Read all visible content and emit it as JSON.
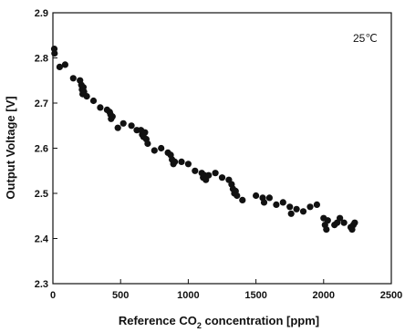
{
  "chart_data": {
    "type": "scatter",
    "annotation": "25℃",
    "ylabel": "Output Voltage [V]",
    "xlabel_parts": [
      "Reference CO",
      "2",
      " concentration [ppm]"
    ],
    "xlim": [
      0,
      2500
    ],
    "ylim": [
      2.3,
      2.9
    ],
    "xticks": [
      0,
      500,
      1000,
      1500,
      2000,
      2500
    ],
    "yticks": [
      2.3,
      2.4,
      2.5,
      2.6,
      2.7,
      2.8,
      2.9
    ],
    "grid": false,
    "marker_color": "#111111",
    "points": [
      [
        10,
        2.82
      ],
      [
        12,
        2.81
      ],
      [
        50,
        2.78
      ],
      [
        90,
        2.785
      ],
      [
        150,
        2.755
      ],
      [
        200,
        2.75
      ],
      [
        210,
        2.74
      ],
      [
        215,
        2.73
      ],
      [
        220,
        2.72
      ],
      [
        225,
        2.735
      ],
      [
        230,
        2.725
      ],
      [
        250,
        2.715
      ],
      [
        300,
        2.705
      ],
      [
        350,
        2.69
      ],
      [
        400,
        2.685
      ],
      [
        420,
        2.68
      ],
      [
        425,
        2.675
      ],
      [
        430,
        2.665
      ],
      [
        440,
        2.67
      ],
      [
        480,
        2.645
      ],
      [
        520,
        2.655
      ],
      [
        580,
        2.65
      ],
      [
        620,
        2.64
      ],
      [
        650,
        2.64
      ],
      [
        660,
        2.63
      ],
      [
        670,
        2.625
      ],
      [
        680,
        2.635
      ],
      [
        690,
        2.62
      ],
      [
        700,
        2.61
      ],
      [
        750,
        2.595
      ],
      [
        800,
        2.6
      ],
      [
        850,
        2.59
      ],
      [
        870,
        2.585
      ],
      [
        880,
        2.575
      ],
      [
        890,
        2.565
      ],
      [
        900,
        2.57
      ],
      [
        950,
        2.57
      ],
      [
        1000,
        2.565
      ],
      [
        1050,
        2.55
      ],
      [
        1100,
        2.545
      ],
      [
        1110,
        2.535
      ],
      [
        1120,
        2.54
      ],
      [
        1130,
        2.53
      ],
      [
        1150,
        2.54
      ],
      [
        1200,
        2.545
      ],
      [
        1250,
        2.535
      ],
      [
        1300,
        2.53
      ],
      [
        1320,
        2.52
      ],
      [
        1330,
        2.51
      ],
      [
        1340,
        2.5
      ],
      [
        1350,
        2.505
      ],
      [
        1360,
        2.495
      ],
      [
        1400,
        2.485
      ],
      [
        1500,
        2.495
      ],
      [
        1550,
        2.49
      ],
      [
        1560,
        2.48
      ],
      [
        1600,
        2.49
      ],
      [
        1650,
        2.475
      ],
      [
        1700,
        2.48
      ],
      [
        1750,
        2.47
      ],
      [
        1760,
        2.455
      ],
      [
        1800,
        2.465
      ],
      [
        1850,
        2.46
      ],
      [
        1900,
        2.47
      ],
      [
        1950,
        2.475
      ],
      [
        2000,
        2.445
      ],
      [
        2010,
        2.43
      ],
      [
        2020,
        2.42
      ],
      [
        2030,
        2.44
      ],
      [
        2080,
        2.43
      ],
      [
        2100,
        2.435
      ],
      [
        2120,
        2.445
      ],
      [
        2150,
        2.435
      ],
      [
        2200,
        2.425
      ],
      [
        2210,
        2.42
      ],
      [
        2220,
        2.43
      ],
      [
        2230,
        2.435
      ]
    ]
  }
}
